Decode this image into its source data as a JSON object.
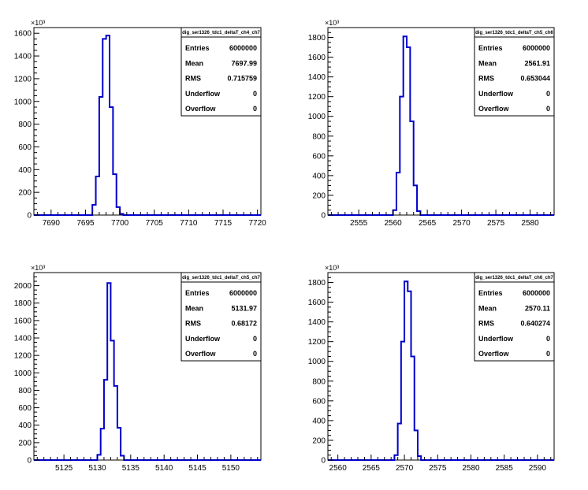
{
  "chart_data": [
    {
      "type": "histogram",
      "title": "dig_ser1326_tdc1_deltaT_ch4_ch7",
      "x_range": [
        7687.5,
        7720.5
      ],
      "x_ticks": [
        7690,
        7695,
        7700,
        7705,
        7710,
        7715,
        7720
      ],
      "y_range": [
        0,
        1650
      ],
      "y_ticks": [
        0,
        200,
        400,
        600,
        800,
        1000,
        1200,
        1400,
        1600
      ],
      "y_exponent": "×10³",
      "bins": [
        {
          "x0": 7696.0,
          "x1": 7696.5,
          "y": 90
        },
        {
          "x0": 7696.5,
          "x1": 7697.0,
          "y": 340
        },
        {
          "x0": 7697.0,
          "x1": 7697.5,
          "y": 1040
        },
        {
          "x0": 7697.5,
          "x1": 7698.0,
          "y": 1550
        },
        {
          "x0": 7698.0,
          "x1": 7698.5,
          "y": 1580
        },
        {
          "x0": 7698.5,
          "x1": 7699.0,
          "y": 950
        },
        {
          "x0": 7699.0,
          "x1": 7699.5,
          "y": 360
        },
        {
          "x0": 7699.5,
          "x1": 7700.0,
          "y": 70
        },
        {
          "x0": 7700.0,
          "x1": 7700.5,
          "y": 10
        }
      ],
      "stats": [
        {
          "label": "Entries",
          "value": "6000000"
        },
        {
          "label": "Mean",
          "value": "7697.99"
        },
        {
          "label": "RMS",
          "value": "0.715759"
        },
        {
          "label": "Underflow",
          "value": "0"
        },
        {
          "label": "Overflow",
          "value": "0"
        }
      ]
    },
    {
      "type": "histogram",
      "title": "dig_ser1326_tdc1_deltaT_ch5_ch6",
      "x_range": [
        2550.5,
        2583.5
      ],
      "x_ticks": [
        2555,
        2560,
        2565,
        2570,
        2575,
        2580
      ],
      "y_range": [
        0,
        1900
      ],
      "y_ticks": [
        0,
        200,
        400,
        600,
        800,
        1000,
        1200,
        1400,
        1600,
        1800
      ],
      "y_exponent": "×10³",
      "bins": [
        {
          "x0": 2560.0,
          "x1": 2560.5,
          "y": 50
        },
        {
          "x0": 2560.5,
          "x1": 2561.0,
          "y": 430
        },
        {
          "x0": 2561.0,
          "x1": 2561.5,
          "y": 1200
        },
        {
          "x0": 2561.5,
          "x1": 2562.0,
          "y": 1810
        },
        {
          "x0": 2562.0,
          "x1": 2562.5,
          "y": 1700
        },
        {
          "x0": 2562.5,
          "x1": 2563.0,
          "y": 950
        },
        {
          "x0": 2563.0,
          "x1": 2563.5,
          "y": 300
        },
        {
          "x0": 2563.5,
          "x1": 2564.0,
          "y": 40
        }
      ],
      "stats": [
        {
          "label": "Entries",
          "value": "6000000"
        },
        {
          "label": "Mean",
          "value": "2561.91"
        },
        {
          "label": "RMS",
          "value": "0.653044"
        },
        {
          "label": "Underflow",
          "value": "0"
        },
        {
          "label": "Overflow",
          "value": "0"
        }
      ]
    },
    {
      "type": "histogram",
      "title": "dig_ser1326_tdc1_deltaT_ch5_ch7",
      "x_range": [
        5120.5,
        5154.5
      ],
      "x_ticks": [
        5125,
        5130,
        5135,
        5140,
        5145,
        5150
      ],
      "y_range": [
        0,
        2150
      ],
      "y_ticks": [
        0,
        200,
        400,
        600,
        800,
        1000,
        1200,
        1400,
        1600,
        1800,
        2000
      ],
      "y_exponent": "×10³",
      "bins": [
        {
          "x0": 5130.0,
          "x1": 5130.5,
          "y": 60
        },
        {
          "x0": 5130.5,
          "x1": 5131.0,
          "y": 360
        },
        {
          "x0": 5131.0,
          "x1": 5131.5,
          "y": 920
        },
        {
          "x0": 5131.5,
          "x1": 5132.0,
          "y": 2030
        },
        {
          "x0": 5132.0,
          "x1": 5132.5,
          "y": 1370
        },
        {
          "x0": 5132.5,
          "x1": 5133.0,
          "y": 850
        },
        {
          "x0": 5133.0,
          "x1": 5133.5,
          "y": 370
        },
        {
          "x0": 5133.5,
          "x1": 5134.0,
          "y": 50
        }
      ],
      "stats": [
        {
          "label": "Entries",
          "value": "6000000"
        },
        {
          "label": "Mean",
          "value": "5131.97"
        },
        {
          "label": "RMS",
          "value": "0.68172"
        },
        {
          "label": "Underflow",
          "value": "0"
        },
        {
          "label": "Overflow",
          "value": "0"
        }
      ]
    },
    {
      "type": "histogram",
      "title": "dig_ser1326_tdc1_deltaT_ch6_ch7",
      "x_range": [
        2558.5,
        2592.5
      ],
      "x_ticks": [
        2560,
        2565,
        2570,
        2575,
        2580,
        2585,
        2590
      ],
      "y_range": [
        0,
        1900
      ],
      "y_ticks": [
        0,
        200,
        400,
        600,
        800,
        1000,
        1200,
        1400,
        1600,
        1800
      ],
      "y_exponent": "×10³",
      "bins": [
        {
          "x0": 2568.5,
          "x1": 2569.0,
          "y": 50
        },
        {
          "x0": 2569.0,
          "x1": 2569.5,
          "y": 370
        },
        {
          "x0": 2569.5,
          "x1": 2570.0,
          "y": 1200
        },
        {
          "x0": 2570.0,
          "x1": 2570.5,
          "y": 1810
        },
        {
          "x0": 2570.5,
          "x1": 2571.0,
          "y": 1710
        },
        {
          "x0": 2571.0,
          "x1": 2571.5,
          "y": 1050
        },
        {
          "x0": 2571.5,
          "x1": 2572.0,
          "y": 300
        },
        {
          "x0": 2572.0,
          "x1": 2572.5,
          "y": 40
        }
      ],
      "stats": [
        {
          "label": "Entries",
          "value": "6000000"
        },
        {
          "label": "Mean",
          "value": "2570.11"
        },
        {
          "label": "RMS",
          "value": "0.640274"
        },
        {
          "label": "Underflow",
          "value": "0"
        },
        {
          "label": "Overflow",
          "value": "0"
        }
      ]
    }
  ]
}
